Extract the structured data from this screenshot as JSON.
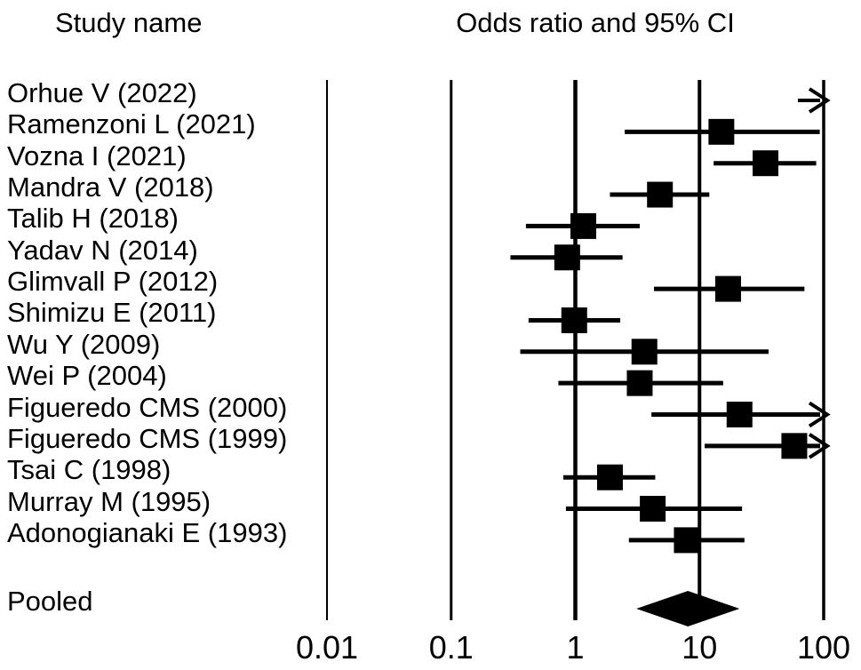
{
  "figure": {
    "left_header": "Study name",
    "right_header": "Odds ratio and 95% CI",
    "pooled_label": "Pooled",
    "colors": {
      "ink": "#000000",
      "background": "#ffffff"
    }
  },
  "chart_data": {
    "type": "forest-plot",
    "title": "Odds ratio and 95% CI",
    "x_axis": {
      "scale": "log10",
      "min": 0.01,
      "max": 100,
      "ticks": [
        0.01,
        0.1,
        1,
        10,
        100
      ],
      "tick_labels": [
        "0.01",
        "0.1",
        "1",
        "10",
        "100"
      ],
      "gridlines": true
    },
    "studies": [
      {
        "label": "Orhue V (2022)",
        "or": null,
        "ci_low": null,
        "ci_high": null,
        "marker": "arrow-only",
        "offscale_right": true,
        "note": "CI entirely above 100; drawn as right arrow at axis edge"
      },
      {
        "label": "Ramenzoni L (2021)",
        "or": 15,
        "ci_low": 2.5,
        "ci_high": 93,
        "marker": "square",
        "offscale_right": false
      },
      {
        "label": "Vozna I (2021)",
        "or": 34,
        "ci_low": 13,
        "ci_high": 87,
        "marker": "square",
        "offscale_right": false
      },
      {
        "label": "Mandra V (2018)",
        "or": 4.8,
        "ci_low": 1.9,
        "ci_high": 12,
        "marker": "square",
        "offscale_right": false
      },
      {
        "label": "Talib H (2018)",
        "or": 1.16,
        "ci_low": 0.4,
        "ci_high": 3.3,
        "marker": "square",
        "offscale_right": false
      },
      {
        "label": "Yadav N (2014)",
        "or": 0.86,
        "ci_low": 0.3,
        "ci_high": 2.4,
        "marker": "square",
        "offscale_right": false
      },
      {
        "label": "Glimvall P (2012)",
        "or": 17,
        "ci_low": 4.3,
        "ci_high": 70,
        "marker": "square",
        "offscale_right": false
      },
      {
        "label": "Shimizu E (2011)",
        "or": 0.98,
        "ci_low": 0.42,
        "ci_high": 2.3,
        "marker": "square",
        "offscale_right": false
      },
      {
        "label": "Wu Y (2009)",
        "or": 3.6,
        "ci_low": 0.36,
        "ci_high": 36,
        "marker": "square",
        "offscale_right": false
      },
      {
        "label": "Wei P (2004)",
        "or": 3.3,
        "ci_low": 0.73,
        "ci_high": 15.5,
        "marker": "square",
        "offscale_right": false
      },
      {
        "label": "Figueredo CMS (2000)",
        "or": 21,
        "ci_low": 4.1,
        "ci_high": 120,
        "marker": "square",
        "offscale_right": true
      },
      {
        "label": "Figueredo CMS (1999)",
        "or": 58,
        "ci_low": 11,
        "ci_high": 140,
        "marker": "square",
        "offscale_right": true
      },
      {
        "label": "Tsai C (1998)",
        "or": 1.9,
        "ci_low": 0.8,
        "ci_high": 4.4,
        "marker": "square",
        "offscale_right": false
      },
      {
        "label": "Murray M (1995)",
        "or": 4.2,
        "ci_low": 0.84,
        "ci_high": 22,
        "marker": "square",
        "offscale_right": false
      },
      {
        "label": "Adonogianaki E (1993)",
        "or": 7.9,
        "ci_low": 2.7,
        "ci_high": 23,
        "marker": "square",
        "offscale_right": false
      }
    ],
    "pooled": {
      "label": "Pooled",
      "or": 8.1,
      "ci_low": 3.1,
      "ci_high": 21,
      "marker": "diamond"
    },
    "legend_position": "none"
  }
}
